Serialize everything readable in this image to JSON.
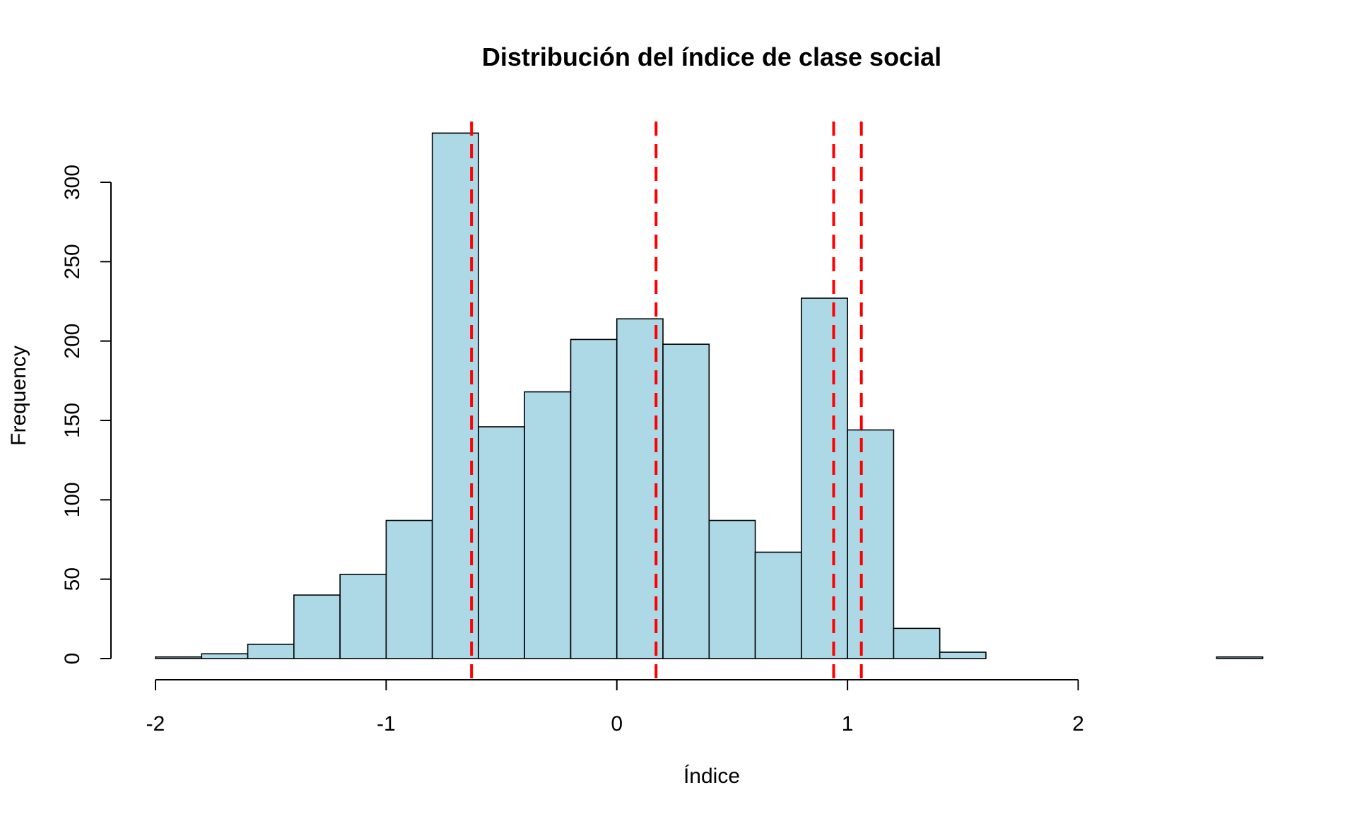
{
  "chart_data": {
    "type": "bar",
    "title": "Distribución del índice de clase social",
    "xlabel": "Índice",
    "ylabel": "Frequency",
    "bins": [
      {
        "x0": -2.0,
        "x1": -1.8,
        "count": 1
      },
      {
        "x0": -1.8,
        "x1": -1.6,
        "count": 3
      },
      {
        "x0": -1.6,
        "x1": -1.4,
        "count": 9
      },
      {
        "x0": -1.4,
        "x1": -1.2,
        "count": 40
      },
      {
        "x0": -1.2,
        "x1": -1.0,
        "count": 53
      },
      {
        "x0": -1.0,
        "x1": -0.8,
        "count": 87
      },
      {
        "x0": -0.8,
        "x1": -0.6,
        "count": 331
      },
      {
        "x0": -0.6,
        "x1": -0.4,
        "count": 146
      },
      {
        "x0": -0.4,
        "x1": -0.2,
        "count": 168
      },
      {
        "x0": -0.2,
        "x1": 0.0,
        "count": 201
      },
      {
        "x0": 0.0,
        "x1": 0.2,
        "count": 214
      },
      {
        "x0": 0.2,
        "x1": 0.4,
        "count": 198
      },
      {
        "x0": 0.4,
        "x1": 0.6,
        "count": 87
      },
      {
        "x0": 0.6,
        "x1": 0.8,
        "count": 67
      },
      {
        "x0": 0.8,
        "x1": 1.0,
        "count": 227
      },
      {
        "x0": 1.0,
        "x1": 1.2,
        "count": 144
      },
      {
        "x0": 1.2,
        "x1": 1.4,
        "count": 19
      },
      {
        "x0": 1.4,
        "x1": 1.6,
        "count": 4
      },
      {
        "x0": 1.6,
        "x1": 1.8,
        "count": 0
      },
      {
        "x0": 1.8,
        "x1": 2.0,
        "count": 0
      },
      {
        "x0": 2.0,
        "x1": 2.2,
        "count": 0
      },
      {
        "x0": 2.2,
        "x1": 2.4,
        "count": 0
      },
      {
        "x0": 2.4,
        "x1": 2.6,
        "count": 0
      },
      {
        "x0": 2.6,
        "x1": 2.8,
        "count": 1
      }
    ],
    "reference_lines": [
      {
        "x": -0.63
      },
      {
        "x": 0.17
      },
      {
        "x": 0.94
      },
      {
        "x": 1.06
      }
    ],
    "x_ticks": [
      {
        "value": -2,
        "label": "-2"
      },
      {
        "value": -1,
        "label": "-1"
      },
      {
        "value": 0,
        "label": "0"
      },
      {
        "value": 1,
        "label": "1"
      },
      {
        "value": 2,
        "label": "2"
      }
    ],
    "y_ticks": [
      {
        "value": 0,
        "label": "0"
      },
      {
        "value": 50,
        "label": "50"
      },
      {
        "value": 100,
        "label": "100"
      },
      {
        "value": 150,
        "label": "150"
      },
      {
        "value": 200,
        "label": "200"
      },
      {
        "value": 250,
        "label": "250"
      },
      {
        "value": 300,
        "label": "300"
      }
    ],
    "xlim": [
      -2,
      2.8
    ],
    "ylim": [
      0,
      340
    ],
    "grid": false,
    "colors": {
      "bar_fill": "#add8e6",
      "bar_border": "#000000",
      "reference_line": "#ff0000"
    }
  }
}
